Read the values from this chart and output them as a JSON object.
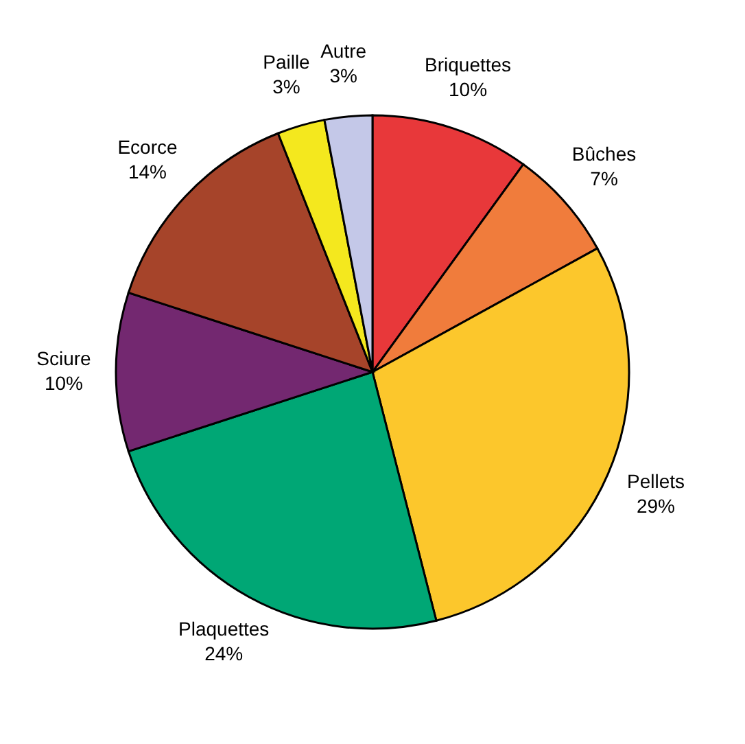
{
  "chart_data": {
    "type": "pie",
    "categories": [
      "Briquettes",
      "Bûches",
      "Pellets",
      "Plaquettes",
      "Sciure",
      "Ecorce",
      "Paille",
      "Autre"
    ],
    "values": [
      10,
      7,
      29,
      24,
      10,
      14,
      3,
      3
    ],
    "value_labels": [
      "10%",
      "7%",
      "29%",
      "24%",
      "10%",
      "14%",
      "3%",
      "3%"
    ],
    "colors": [
      "#e8383a",
      "#f07c3c",
      "#fcc72c",
      "#00a775",
      "#732870",
      "#a6442a",
      "#f4e81e",
      "#c4c8e8"
    ]
  }
}
